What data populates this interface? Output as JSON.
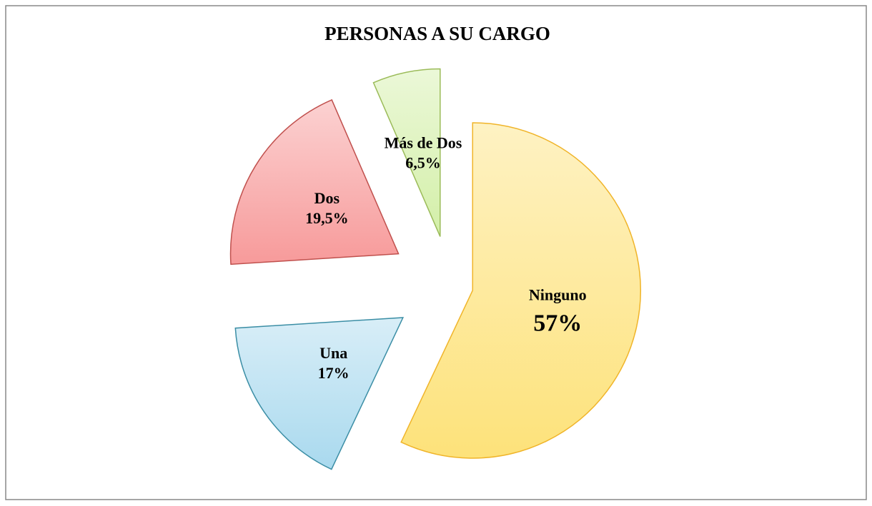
{
  "chart_data": {
    "type": "pie",
    "title": "PERSONAS A SU CARGO",
    "categories": [
      "Ninguno",
      "Una",
      "Dos",
      "Más de Dos"
    ],
    "values": [
      57,
      17,
      19.5,
      6.5
    ],
    "value_labels": [
      "57%",
      "17%",
      "19,5%",
      "6,5%"
    ],
    "colors": [
      "#fde27a",
      "#a9d9ee",
      "#f79a9a",
      "#d3efa8"
    ],
    "stroke_colors": [
      "#f0b429",
      "#3b8ea5",
      "#c0504d",
      "#9bbb59"
    ]
  }
}
